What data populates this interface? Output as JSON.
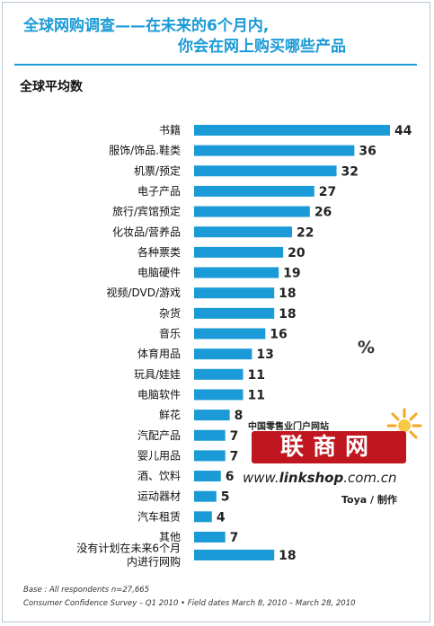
{
  "title": {
    "line1": "全球网购调查——在未来的6个月内,",
    "line2": "你会在网上购买哪些产品"
  },
  "subtitle": "全球平均数",
  "unit": "%",
  "footer": {
    "base": "Base : All respondents n=27,665",
    "source": "Consumer Confidence Survey – Q1 2010 • Field dates March 8, 2010 – March 28, 2010"
  },
  "logo": {
    "cn_line": "中国零售业门户网站",
    "main": "联商网",
    "url_prefix": "www.",
    "url_bold": "linkshop",
    "url_suffix": ".com.cn",
    "credit": "Toya / 制作"
  },
  "colors": {
    "bar": "#1a9ad6",
    "title": "#1a9ad6",
    "logo_red": "#c0161f"
  },
  "chart_data": {
    "type": "bar",
    "orientation": "horizontal",
    "categories": [
      "书籍",
      "服饰/饰品.鞋类",
      "机票/预定",
      "电子产品",
      "旅行/宾馆预定",
      "化妆品/营养品",
      "各种票类",
      "电脑硬件",
      "视频/DVD/游戏",
      "杂货",
      "音乐",
      "体育用品",
      "玩具/娃娃",
      "电脑软件",
      "鲜花",
      "汽配产品",
      "婴儿用品",
      "酒、饮料",
      "运动器材",
      "汽车租赁",
      "其他",
      "没有计划在未来6个月内进行网购"
    ],
    "category_lines": [
      [
        "书籍"
      ],
      [
        "服饰/饰品.鞋类"
      ],
      [
        "机票/预定"
      ],
      [
        "电子产品"
      ],
      [
        "旅行/宾馆预定"
      ],
      [
        "化妆品/营养品"
      ],
      [
        "各种票类"
      ],
      [
        "电脑硬件"
      ],
      [
        "视频/DVD/游戏"
      ],
      [
        "杂货"
      ],
      [
        "音乐"
      ],
      [
        "体育用品"
      ],
      [
        "玩具/娃娃"
      ],
      [
        "电脑软件"
      ],
      [
        "鲜花"
      ],
      [
        "汽配产品"
      ],
      [
        "婴儿用品"
      ],
      [
        "酒、饮料"
      ],
      [
        "运动器材"
      ],
      [
        "汽车租赁"
      ],
      [
        "其他"
      ],
      [
        "没有计划在未来6个月",
        "内进行网购"
      ]
    ],
    "values": [
      44,
      36,
      32,
      27,
      26,
      22,
      20,
      19,
      18,
      18,
      16,
      13,
      11,
      11,
      8,
      7,
      7,
      6,
      5,
      4,
      7,
      18
    ],
    "title": "全球平均数",
    "xlim": [
      0,
      44
    ],
    "grid": false
  }
}
